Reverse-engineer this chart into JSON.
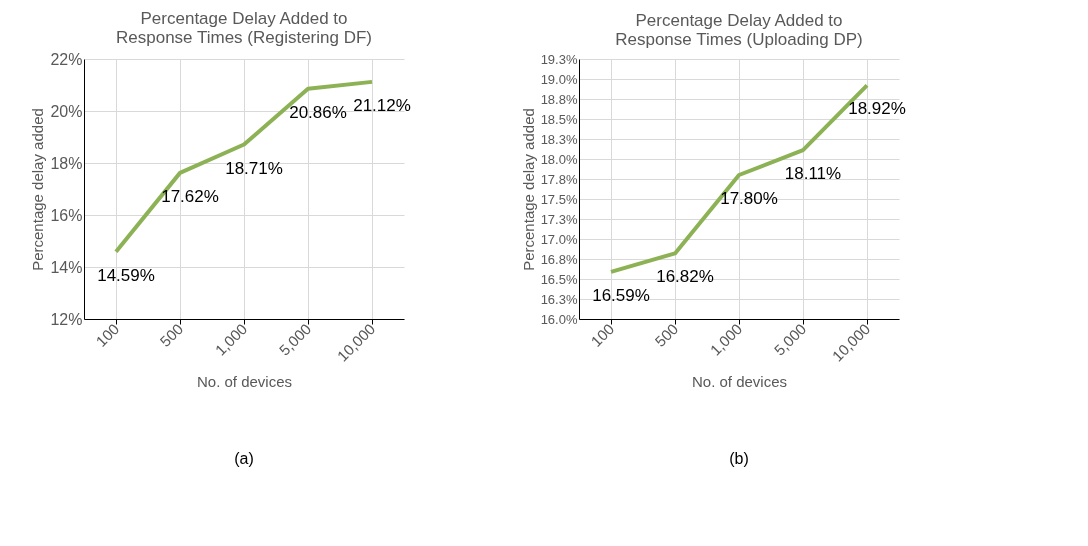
{
  "chart_data": [
    {
      "type": "line",
      "title": [
        "Percentage Delay Added to",
        "Response Times (Registering DF)"
      ],
      "xlabel": "No. of devices",
      "ylabel": "Percentage delay added",
      "categories": [
        "100",
        "500",
        "1,000",
        "5,000",
        "10,000"
      ],
      "series": [
        {
          "color": "#8db255",
          "values": [
            14.59,
            17.62,
            18.71,
            20.86,
            21.12
          ],
          "value_labels": [
            "14.59%",
            "17.62%",
            "18.71%",
            "20.86%",
            "21.12%"
          ]
        }
      ],
      "ylim": [
        12,
        22
      ],
      "yticks": [
        {
          "value": 12,
          "label": "12%"
        },
        {
          "value": 14,
          "label": "14%"
        },
        {
          "value": 16,
          "label": "16%"
        },
        {
          "value": 18,
          "label": "18%"
        },
        {
          "value": 20,
          "label": "20%"
        },
        {
          "value": 22,
          "label": "22%"
        }
      ],
      "grid": true,
      "marker": "none",
      "line_style": "solid",
      "annotations": [
        "(a)"
      ]
    },
    {
      "type": "line",
      "title": [
        "Percentage Delay Added to",
        "Response Times (Uploading DP)"
      ],
      "xlabel": "No. of devices",
      "ylabel": "Percentage delay added",
      "categories": [
        "100",
        "500",
        "1,000",
        "5,000",
        "10,000"
      ],
      "series": [
        {
          "color": "#8db255",
          "values": [
            16.59,
            16.82,
            17.8,
            18.11,
            18.92
          ],
          "value_labels": [
            "16.59%",
            "16.82%",
            "17.80%",
            "18.11%",
            "18.92%"
          ]
        }
      ],
      "ylim": [
        16,
        19.25
      ],
      "yticks": [
        {
          "value": 16,
          "label": "16.0%"
        },
        {
          "value": 16.25,
          "label": "16.3%"
        },
        {
          "value": 16.5,
          "label": "16.5%"
        },
        {
          "value": 16.75,
          "label": "16.8%"
        },
        {
          "value": 17,
          "label": "17.0%"
        },
        {
          "value": 17.25,
          "label": "17.3%"
        },
        {
          "value": 17.5,
          "label": "17.5%"
        },
        {
          "value": 17.75,
          "label": "17.8%"
        },
        {
          "value": 18,
          "label": "18.0%"
        },
        {
          "value": 18.25,
          "label": "18.3%"
        },
        {
          "value": 18.5,
          "label": "18.5%"
        },
        {
          "value": 18.75,
          "label": "18.8%"
        },
        {
          "value": 19,
          "label": "19.0%"
        },
        {
          "value": 19.25,
          "label": "19.3%"
        }
      ],
      "grid": true,
      "marker": "none",
      "line_style": "solid",
      "annotations": [
        "(b)"
      ]
    }
  ]
}
